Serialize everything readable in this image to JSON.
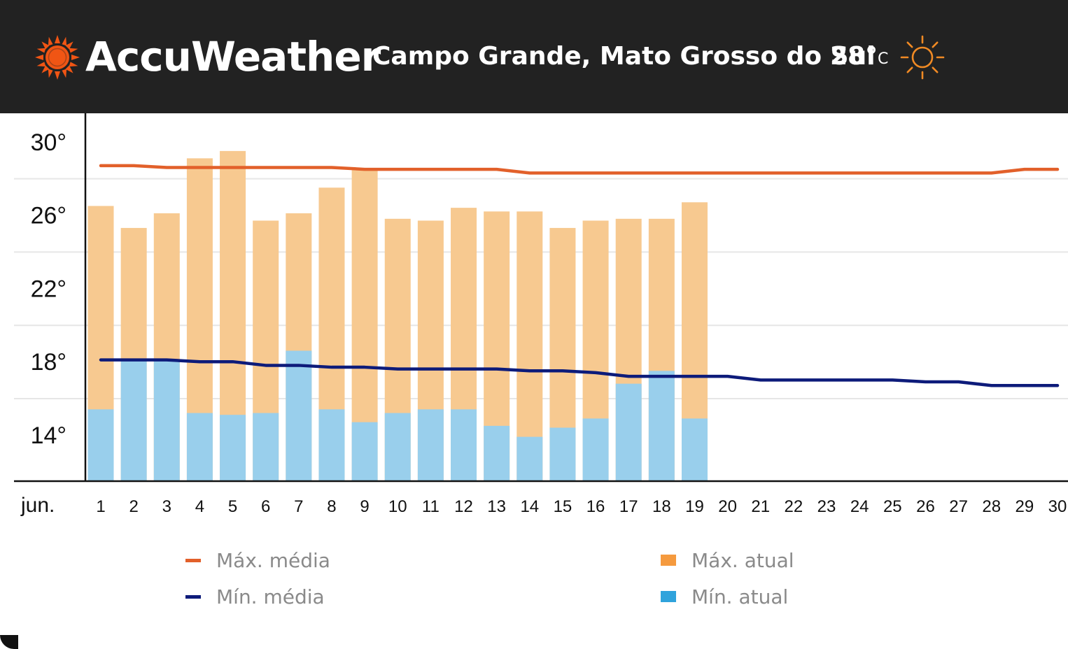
{
  "header": {
    "brand": "AccuWeather",
    "location": "Campo Grande, Mato Grosso do Sul",
    "current_temp": "28°",
    "unit": "C",
    "logo_icon": "accuweather-sun-logo",
    "weather_icon": "sun-icon",
    "background": "#222222",
    "brand_color": "#f05514"
  },
  "legend": {
    "max_avg": "Máx. média",
    "min_avg": "Mín. média",
    "max_actual": "Máx. atual",
    "min_actual": "Mín. atual"
  },
  "colors": {
    "max_avg": "#e2602a",
    "min_avg": "#0d1b7a",
    "max_actual": "#f7c990",
    "min_actual": "#99cfec",
    "legend_max_actual": "#f59a3e",
    "legend_min_actual": "#2fa3dc"
  },
  "chart_data": {
    "type": "bar",
    "month_label": "jun.",
    "x": [
      1,
      2,
      3,
      4,
      5,
      6,
      7,
      8,
      9,
      10,
      11,
      12,
      13,
      14,
      15,
      16,
      17,
      18,
      19,
      20,
      21,
      22,
      23,
      24,
      25,
      26,
      27,
      28,
      29,
      30
    ],
    "y_ticks": [
      14,
      18,
      22,
      26,
      30
    ],
    "y_tick_labels": [
      "14°",
      "18°",
      "22°",
      "26°",
      "30°"
    ],
    "ylim": [
      11,
      32
    ],
    "grid": true,
    "series": [
      {
        "name": "Máx. atual",
        "kind": "bar",
        "values": [
          26.5,
          25.3,
          26.1,
          29.1,
          29.5,
          25.7,
          26.1,
          27.5,
          28.5,
          25.8,
          25.7,
          26.4,
          26.2,
          26.2,
          25.3,
          25.7,
          25.8,
          25.8,
          26.7,
          null,
          null,
          null,
          null,
          null,
          null,
          null,
          null,
          null,
          null,
          null
        ]
      },
      {
        "name": "Mín. atual",
        "kind": "bar",
        "values": [
          15.4,
          18.1,
          18.1,
          15.2,
          15.1,
          15.2,
          18.6,
          15.4,
          14.7,
          15.2,
          15.4,
          15.4,
          14.5,
          13.9,
          14.4,
          14.9,
          16.8,
          17.5,
          14.9,
          null,
          null,
          null,
          null,
          null,
          null,
          null,
          null,
          null,
          null,
          null
        ]
      },
      {
        "name": "Máx. média",
        "kind": "line",
        "values": [
          28.7,
          28.7,
          28.6,
          28.6,
          28.6,
          28.6,
          28.6,
          28.6,
          28.5,
          28.5,
          28.5,
          28.5,
          28.5,
          28.3,
          28.3,
          28.3,
          28.3,
          28.3,
          28.3,
          28.3,
          28.3,
          28.3,
          28.3,
          28.3,
          28.3,
          28.3,
          28.3,
          28.3,
          28.5,
          28.5
        ]
      },
      {
        "name": "Mín. média",
        "kind": "line",
        "values": [
          18.1,
          18.1,
          18.1,
          18.0,
          18.0,
          17.8,
          17.8,
          17.7,
          17.7,
          17.6,
          17.6,
          17.6,
          17.6,
          17.5,
          17.5,
          17.4,
          17.2,
          17.2,
          17.2,
          17.2,
          17.0,
          17.0,
          17.0,
          17.0,
          17.0,
          16.9,
          16.9,
          16.7,
          16.7,
          16.7
        ]
      }
    ]
  }
}
